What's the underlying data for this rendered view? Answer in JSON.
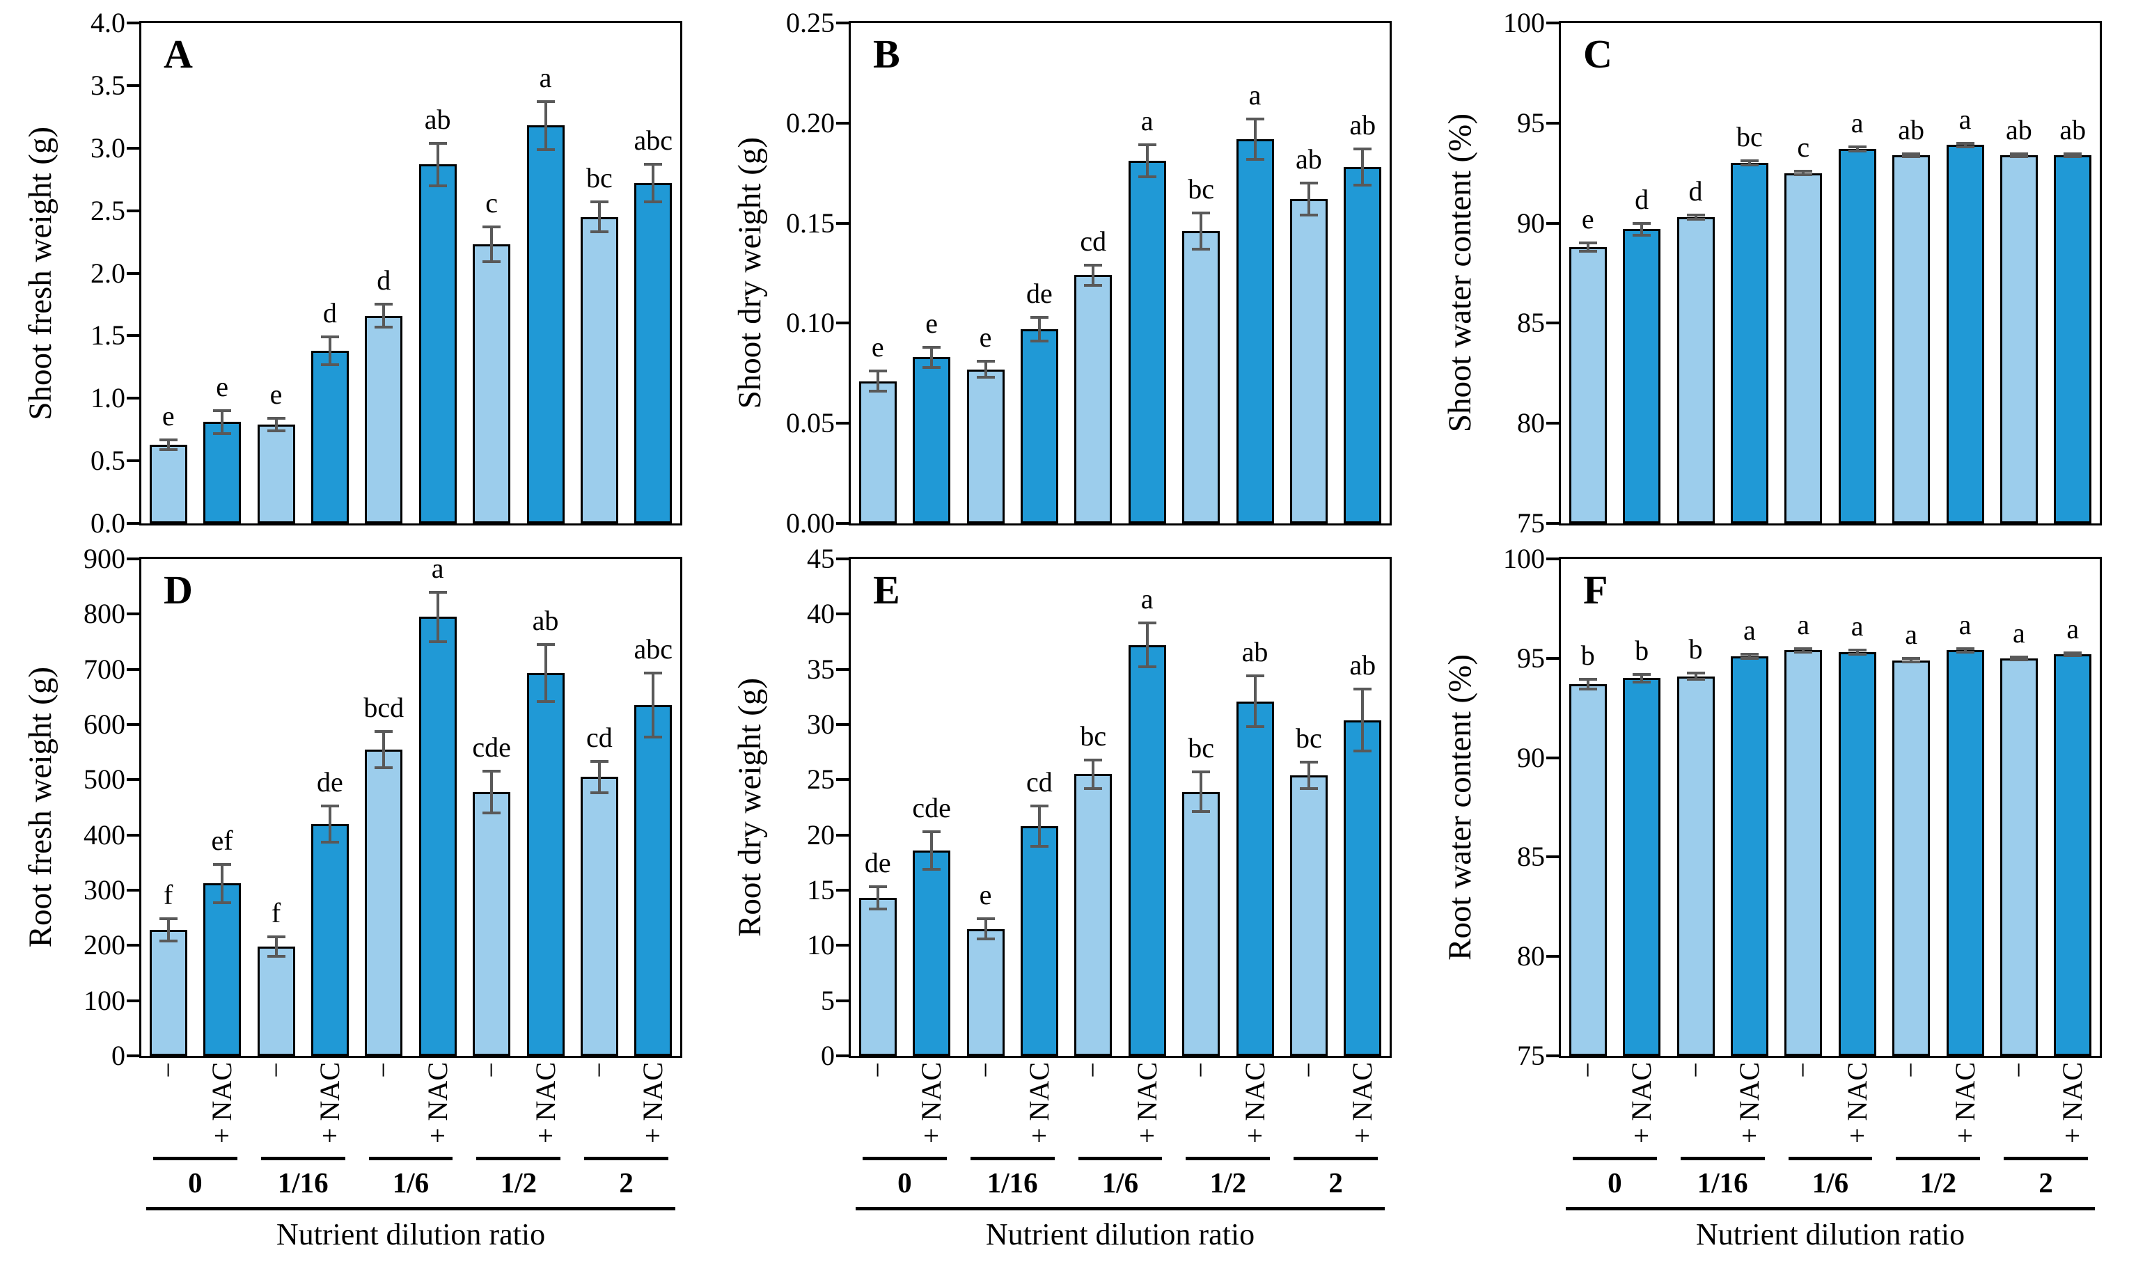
{
  "figure": {
    "x_axis": {
      "title": "Nutrient dilution ratio",
      "groups": [
        "0",
        "1/16",
        "1/6",
        "1/2",
        "2"
      ],
      "treatments": [
        "−",
        "+ NAC"
      ]
    },
    "colors": {
      "light_bar": "#9CCDEC",
      "dark_bar": "#2099D6",
      "bar_border": "#000000",
      "error_bar": "#595959",
      "axis": "#000000",
      "background": "#FFFFFF"
    },
    "legend": {
      "light_bar_meaning": "−",
      "dark_bar_meaning": "+ NAC"
    }
  },
  "chart_data": [
    {
      "panel": "A",
      "type": "bar",
      "ylabel": "Shoot fresh weight (g)",
      "ylim": [
        0,
        4.0
      ],
      "ytick_step": 0.5,
      "ytick_decimals": 1,
      "grid": false,
      "values": [
        0.63,
        0.81,
        0.79,
        1.38,
        1.66,
        2.87,
        2.23,
        3.18,
        2.45,
        2.72
      ],
      "errors": [
        0.04,
        0.09,
        0.05,
        0.11,
        0.09,
        0.17,
        0.14,
        0.19,
        0.12,
        0.15
      ],
      "letters": [
        "e",
        "e",
        "e",
        "d",
        "d",
        "ab",
        "c",
        "a",
        "bc",
        "abc"
      ]
    },
    {
      "panel": "B",
      "type": "bar",
      "ylabel": "Shoot dry weight (g)",
      "ylim": [
        0,
        0.25
      ],
      "ytick_step": 0.05,
      "ytick_decimals": 2,
      "grid": false,
      "values": [
        0.071,
        0.083,
        0.077,
        0.097,
        0.124,
        0.181,
        0.146,
        0.192,
        0.162,
        0.178
      ],
      "errors": [
        0.005,
        0.005,
        0.004,
        0.006,
        0.005,
        0.008,
        0.009,
        0.01,
        0.008,
        0.009
      ],
      "letters": [
        "e",
        "e",
        "e",
        "de",
        "cd",
        "a",
        "bc",
        "a",
        "ab",
        "ab"
      ]
    },
    {
      "panel": "C",
      "type": "bar",
      "ylabel": "Shoot water content (%)",
      "ylim": [
        75,
        100
      ],
      "ytick_step": 5,
      "ytick_decimals": 0,
      "grid": false,
      "values": [
        88.8,
        89.7,
        90.3,
        93.0,
        92.5,
        93.7,
        93.4,
        93.9,
        93.4,
        93.4
      ],
      "errors": [
        0.2,
        0.3,
        0.12,
        0.1,
        0.08,
        0.1,
        0.08,
        0.08,
        0.06,
        0.06
      ],
      "letters": [
        "e",
        "d",
        "d",
        "bc",
        "c",
        "a",
        "ab",
        "a",
        "ab",
        "ab"
      ]
    },
    {
      "panel": "D",
      "type": "bar",
      "ylabel": "Root fresh weight (g)",
      "ylim": [
        0,
        900
      ],
      "ytick_step": 100,
      "ytick_decimals": 0,
      "grid": false,
      "values": [
        228,
        312,
        198,
        420,
        555,
        795,
        478,
        693,
        505,
        635
      ],
      "errors": [
        20,
        35,
        18,
        33,
        33,
        45,
        38,
        52,
        28,
        58
      ],
      "letters": [
        "f",
        "ef",
        "f",
        "de",
        "bcd",
        "a",
        "cde",
        "ab",
        "cd",
        "abc"
      ]
    },
    {
      "panel": "E",
      "type": "bar",
      "ylabel": "Root dry weight (g)",
      "ylim": [
        0,
        45
      ],
      "ytick_step": 5,
      "ytick_decimals": 0,
      "grid": false,
      "values": [
        14.3,
        18.6,
        11.5,
        20.8,
        25.5,
        37.2,
        23.9,
        32.1,
        25.4,
        30.4
      ],
      "errors": [
        1.0,
        1.7,
        0.9,
        1.8,
        1.3,
        2.0,
        1.8,
        2.3,
        1.2,
        2.8
      ],
      "letters": [
        "de",
        "cde",
        "e",
        "cd",
        "bc",
        "a",
        "bc",
        "ab",
        "bc",
        "ab"
      ]
    },
    {
      "panel": "F",
      "type": "bar",
      "ylabel": "Root water content (%)",
      "ylim": [
        75,
        100
      ],
      "ytick_step": 5,
      "ytick_decimals": 0,
      "grid": false,
      "values": [
        93.7,
        94.0,
        94.1,
        95.1,
        95.4,
        95.3,
        94.9,
        95.4,
        95.0,
        95.2
      ],
      "errors": [
        0.25,
        0.2,
        0.15,
        0.1,
        0.08,
        0.1,
        0.08,
        0.1,
        0.08,
        0.08
      ],
      "letters": [
        "b",
        "b",
        "b",
        "a",
        "a",
        "a",
        "a",
        "a",
        "a",
        "a"
      ]
    }
  ]
}
